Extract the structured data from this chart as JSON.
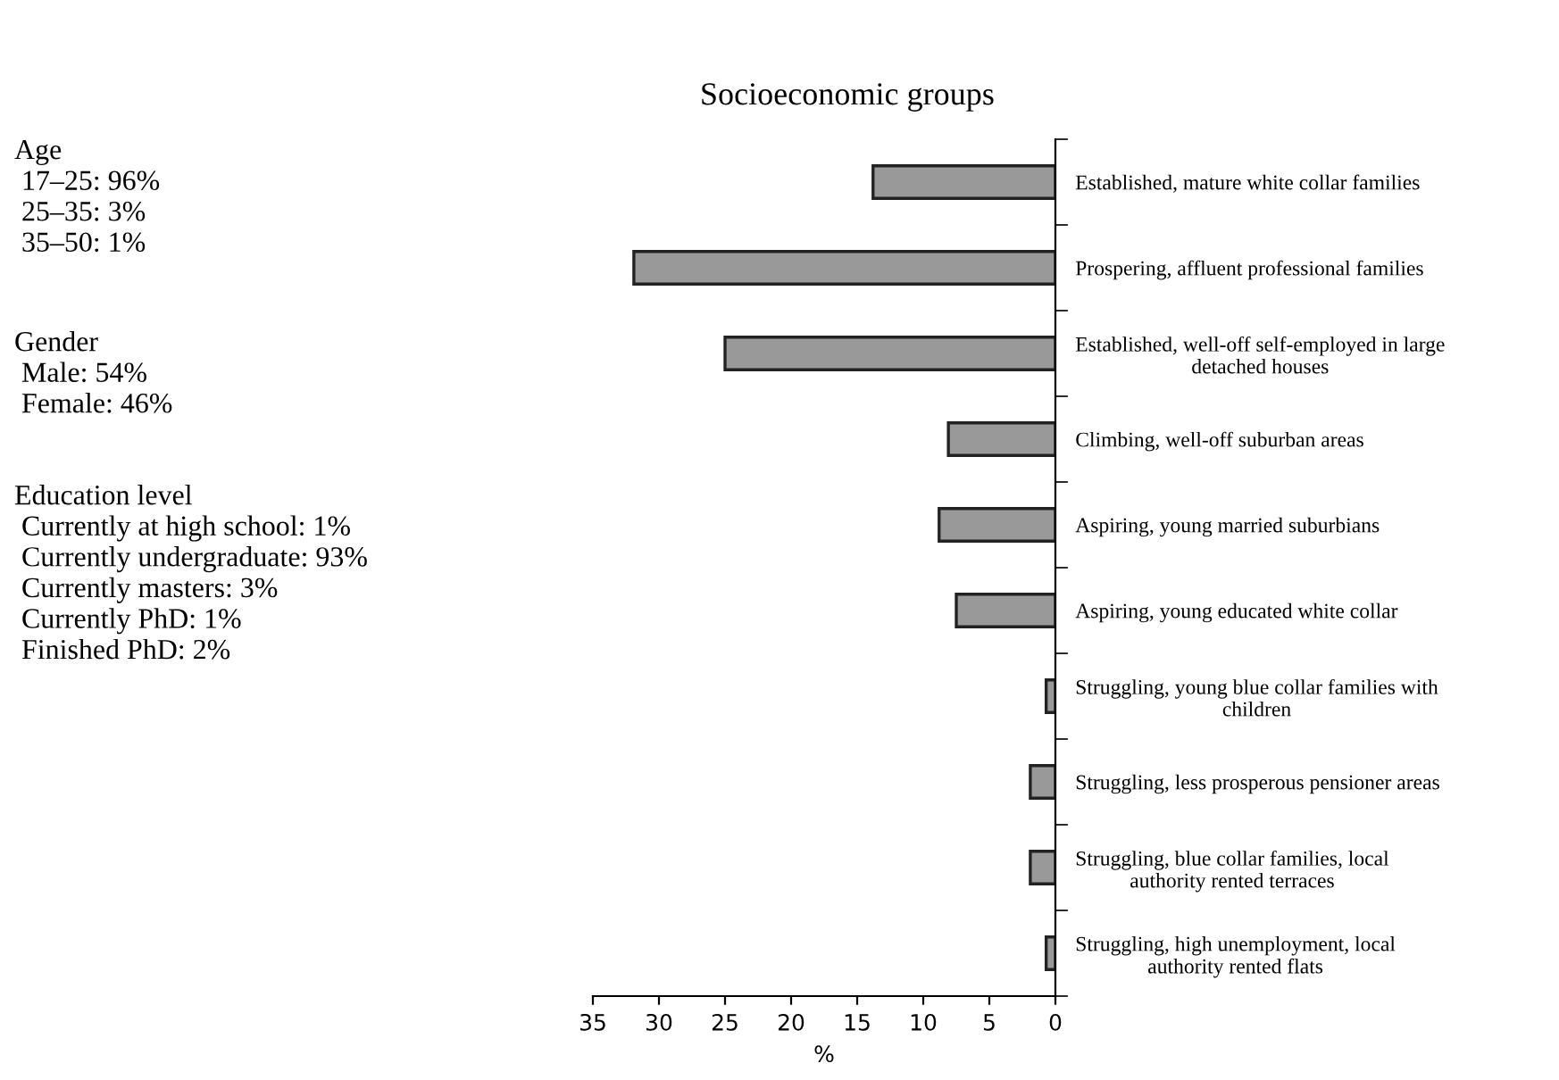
{
  "chart_data": {
    "type": "bar",
    "orientation": "horizontal",
    "title": "Socioeconomic groups",
    "xlabel": "%",
    "categories": [
      "Established, mature white collar families",
      "Prospering, affluent professional families",
      "Established, well-off self-employed in large\ndetached houses",
      "Climbing, well-off suburban areas",
      "Aspiring, young married suburbians",
      "Aspiring, young educated white collar",
      "Struggling, young blue collar families with\nchildren",
      "Struggling, less prosperous pensioner areas",
      "Struggling, blue collar families, local\nauthority rented terraces",
      "Struggling, high unemployment, local\nauthority rented flats"
    ],
    "values": [
      13.8,
      31.9,
      25.0,
      8.1,
      8.8,
      7.5,
      0.7,
      1.9,
      1.9,
      0.7
    ],
    "color": "#999999",
    "xlim": [
      35,
      0
    ],
    "xticks": [
      35,
      30,
      25,
      20,
      15,
      10,
      5,
      0
    ],
    "grid": false,
    "legend": false,
    "annotations": [
      "Age\n 17–25: 96%\n 25–35: 3%\n 35–50: 1%",
      "Gender\n Male: 54%\n Female: 46%",
      "Education level\n Currently at high school: 1%\n Currently undergraduate: 93%\n Currently masters: 3%\n Currently PhD: 1%\n Finished PhD: 2%"
    ]
  }
}
